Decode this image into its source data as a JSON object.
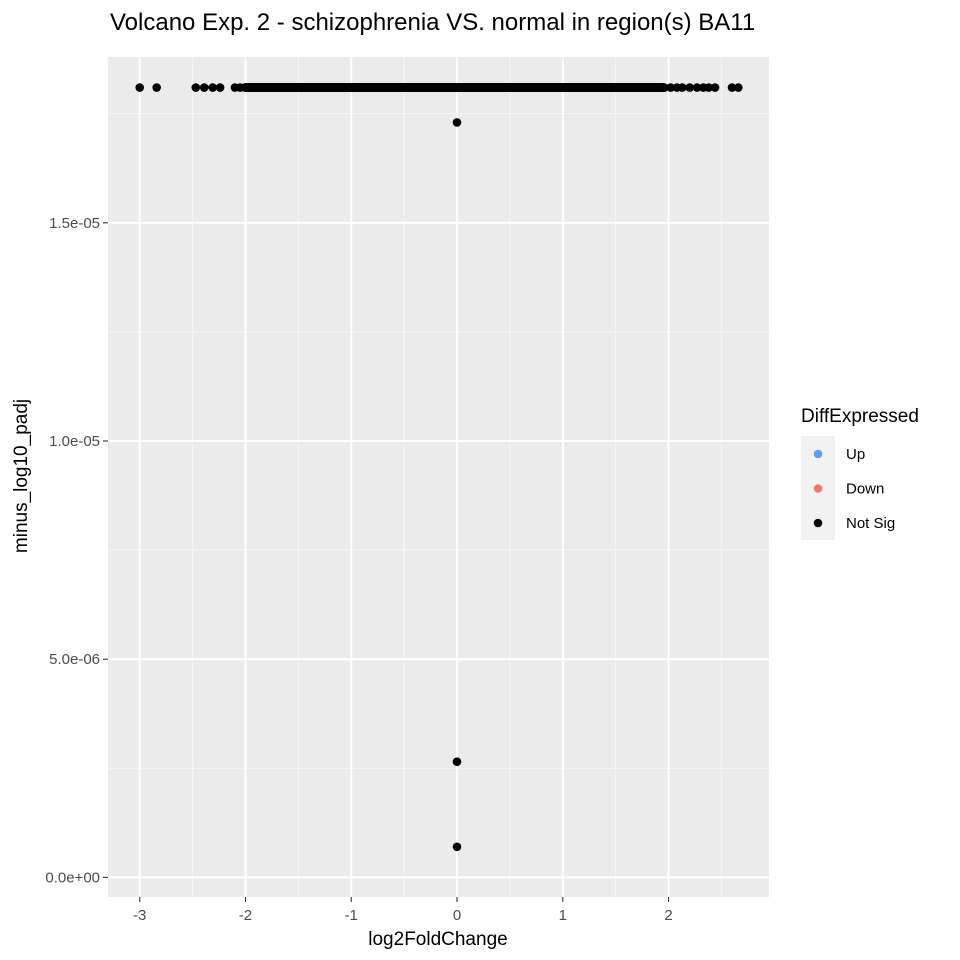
{
  "chart_data": {
    "type": "scatter",
    "title": "Volcano Exp. 2 - schizophrenia VS. normal in region(s) BA11",
    "xlabel": "log2FoldChange",
    "ylabel": "minus_log10_padj",
    "xlim": [
      -3.3,
      2.95
    ],
    "ylim": [
      -4.5e-07,
      1.88e-05
    ],
    "x_ticks": [
      {
        "value": -3,
        "label": "-3"
      },
      {
        "value": -2,
        "label": "-2"
      },
      {
        "value": -1,
        "label": "-1"
      },
      {
        "value": 0,
        "label": "0"
      },
      {
        "value": 1,
        "label": "1"
      },
      {
        "value": 2,
        "label": "2"
      }
    ],
    "y_ticks": [
      {
        "value": 0,
        "label": "0.0e+00"
      },
      {
        "value": 5e-06,
        "label": "5.0e-06"
      },
      {
        "value": 1e-05,
        "label": "1.0e-05"
      },
      {
        "value": 1.5e-05,
        "label": "1.5e-05"
      }
    ],
    "grid": true,
    "legend": {
      "title": "DiffExpressed",
      "placement": "right",
      "entries": [
        {
          "label": "Up",
          "color": "#619CFF"
        },
        {
          "label": "Down",
          "color": "#F8766D"
        },
        {
          "label": "Not Sig",
          "color": "#000000"
        }
      ]
    },
    "series": [
      {
        "name": "Not Sig",
        "color": "#000000",
        "band_y": 1.81e-05,
        "band_x_range": [
          -2.0,
          1.95
        ],
        "points": [
          {
            "x": -3.0,
            "y": 1.81e-05
          },
          {
            "x": -2.84,
            "y": 1.81e-05
          },
          {
            "x": -2.47,
            "y": 1.81e-05
          },
          {
            "x": -2.39,
            "y": 1.81e-05
          },
          {
            "x": -2.31,
            "y": 1.81e-05
          },
          {
            "x": -2.24,
            "y": 1.81e-05
          },
          {
            "x": -2.1,
            "y": 1.81e-05
          },
          {
            "x": -2.05,
            "y": 1.81e-05
          },
          {
            "x": 1.96,
            "y": 1.81e-05
          },
          {
            "x": 2.02,
            "y": 1.81e-05
          },
          {
            "x": 2.08,
            "y": 1.81e-05
          },
          {
            "x": 2.13,
            "y": 1.81e-05
          },
          {
            "x": 2.2,
            "y": 1.81e-05
          },
          {
            "x": 2.27,
            "y": 1.81e-05
          },
          {
            "x": 2.33,
            "y": 1.81e-05
          },
          {
            "x": 2.38,
            "y": 1.81e-05
          },
          {
            "x": 2.44,
            "y": 1.81e-05
          },
          {
            "x": 2.6,
            "y": 1.81e-05
          },
          {
            "x": 2.66,
            "y": 1.81e-05
          },
          {
            "x": 0.0,
            "y": 1.73e-05
          },
          {
            "x": 0.0,
            "y": 2.65e-06
          },
          {
            "x": 0.0,
            "y": 7e-07
          }
        ]
      }
    ]
  }
}
